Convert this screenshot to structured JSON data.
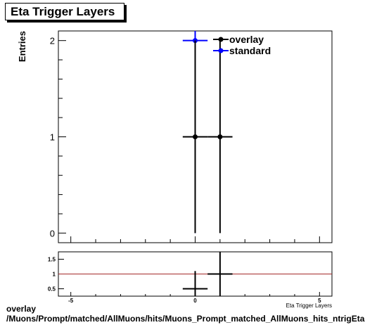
{
  "title": "Eta Trigger Layers",
  "footer": {
    "line1": "overlay",
    "line2": "/Muons/Prompt/matched/AllMuons/hits/Muons_Prompt_matched_AllMuons_hits_ntrigEta"
  },
  "chart_data": [
    {
      "type": "scatter",
      "panel": "main",
      "ylabel": "Entries",
      "xlabel": "",
      "xlim": [
        -5.5,
        5.5
      ],
      "ylim": [
        -0.1,
        2.1
      ],
      "xticks": [
        -5,
        0,
        5
      ],
      "yticks": [
        0,
        1,
        2
      ],
      "legend_position": "top-center",
      "series": [
        {
          "name": "overlay",
          "color": "#000000",
          "points": [
            {
              "x": 0,
              "y": 1,
              "xerr": 0.5,
              "yerr": 1
            },
            {
              "x": 1,
              "y": 1,
              "xerr": 0.5,
              "yerr": 1
            }
          ]
        },
        {
          "name": "standard",
          "color": "#0000ff",
          "points": [
            {
              "x": 0,
              "y": 2,
              "xerr": 0.5,
              "yerr": 2
            }
          ]
        }
      ]
    },
    {
      "type": "scatter",
      "panel": "ratio",
      "xlabel": "Eta Trigger Layers",
      "xlim": [
        -5.5,
        5.5
      ],
      "ylim": [
        0.25,
        1.75
      ],
      "xtick_labels": [
        "-5",
        "0",
        "5"
      ],
      "xticks": [
        -5,
        0,
        5
      ],
      "ytick_labels": [
        "0.5",
        "1",
        "1.5"
      ],
      "yticks": [
        0.5,
        1,
        1.5
      ],
      "reference_line": {
        "y": 1,
        "color": "#a52a2a"
      },
      "series": [
        {
          "name": "",
          "color": "#000000",
          "points": [
            {
              "x": 0,
              "y": 0.5,
              "xerr": 0.5,
              "yerr": 0.6
            },
            {
              "x": 1,
              "y": 1,
              "xerr": 0.5,
              "yerr": 1
            }
          ]
        }
      ]
    }
  ]
}
